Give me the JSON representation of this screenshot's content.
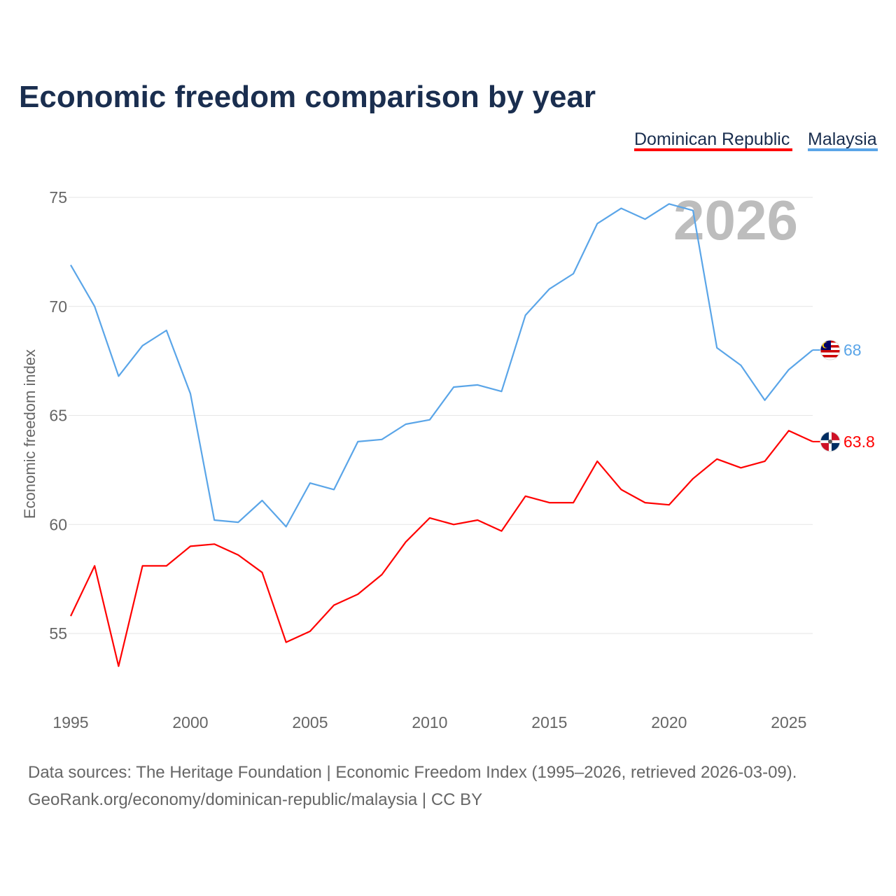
{
  "chart_data": {
    "type": "line",
    "title": "Economic freedom comparison by year",
    "xlabel": "",
    "ylabel": "Economic freedom index",
    "xlim": [
      1995,
      2026
    ],
    "ylim": [
      52,
      76
    ],
    "yticks": [
      55,
      60,
      65,
      70,
      75
    ],
    "xticks": [
      1995,
      2000,
      2005,
      2010,
      2015,
      2020,
      2025
    ],
    "grid": true,
    "legend_position": "top-right",
    "year_watermark": "2026",
    "x": [
      1995,
      1996,
      1997,
      1998,
      1999,
      2000,
      2001,
      2002,
      2003,
      2004,
      2005,
      2006,
      2007,
      2008,
      2009,
      2010,
      2011,
      2012,
      2013,
      2014,
      2015,
      2016,
      2017,
      2018,
      2019,
      2020,
      2021,
      2022,
      2023,
      2024,
      2025,
      2026
    ],
    "series": [
      {
        "name": "Dominican Republic",
        "color": "#ff0000",
        "end_label": "63.8",
        "flag": "dominican-republic",
        "values": [
          55.8,
          58.1,
          53.5,
          58.1,
          58.1,
          59.0,
          59.1,
          58.6,
          57.8,
          54.6,
          55.1,
          56.3,
          56.8,
          57.7,
          59.2,
          60.3,
          60.0,
          60.2,
          59.7,
          61.3,
          61.0,
          61.0,
          62.9,
          61.6,
          61.0,
          60.9,
          62.1,
          63.0,
          62.6,
          62.9,
          64.3,
          63.8
        ]
      },
      {
        "name": "Malaysia",
        "color": "#5aa5e8",
        "end_label": "68",
        "flag": "malaysia",
        "values": [
          71.9,
          70.0,
          66.8,
          68.2,
          68.9,
          66.0,
          60.2,
          60.1,
          61.1,
          59.9,
          61.9,
          61.6,
          63.8,
          63.9,
          64.6,
          64.8,
          66.3,
          66.4,
          66.1,
          69.6,
          70.8,
          71.5,
          73.8,
          74.5,
          74.0,
          74.7,
          74.4,
          68.1,
          67.3,
          65.7,
          67.1,
          68.0
        ]
      }
    ]
  },
  "footer": {
    "line1": "Data sources: The Heritage Foundation | Economic Freedom Index (1995–2026, retrieved 2026-03-09).",
    "line2": "GeoRank.org/economy/dominican-republic/malaysia | CC BY"
  }
}
